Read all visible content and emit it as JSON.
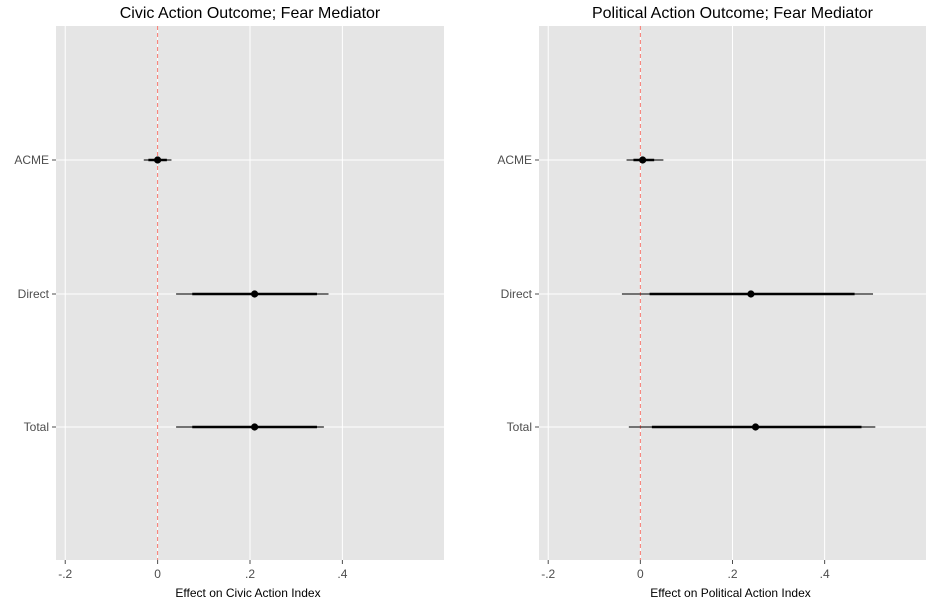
{
  "chart_data": [
    {
      "type": "forest",
      "title": "Civic Action Outcome; Fear Mediator",
      "xlabel": "Effect on Civic Action Index",
      "ylabel": "",
      "xlim": [
        -0.22,
        0.62
      ],
      "x_ticks": [
        {
          "value": -0.2,
          "label": "-.2"
        },
        {
          "value": 0,
          "label": "0"
        },
        {
          "value": 0.2,
          "label": ".2"
        },
        {
          "value": 0.4,
          "label": ".4"
        }
      ],
      "reference_line": 0,
      "grid": true,
      "rows": [
        {
          "label": "ACME",
          "estimate": 0.0,
          "ci_inner": [
            -0.02,
            0.02
          ],
          "ci_outer": [
            -0.03,
            0.03
          ]
        },
        {
          "label": "Direct",
          "estimate": 0.21,
          "ci_inner": [
            0.075,
            0.345
          ],
          "ci_outer": [
            0.04,
            0.37
          ]
        },
        {
          "label": "Total",
          "estimate": 0.21,
          "ci_inner": [
            0.075,
            0.345
          ],
          "ci_outer": [
            0.04,
            0.36
          ]
        }
      ]
    },
    {
      "type": "forest",
      "title": "Political Action Outcome; Fear Mediator",
      "xlabel": "Effect on Political Action Index",
      "ylabel": "",
      "xlim": [
        -0.22,
        0.62
      ],
      "x_ticks": [
        {
          "value": -0.2,
          "label": "-.2"
        },
        {
          "value": 0,
          "label": "0"
        },
        {
          "value": 0.2,
          "label": ".2"
        },
        {
          "value": 0.4,
          "label": ".4"
        }
      ],
      "reference_line": 0,
      "grid": true,
      "rows": [
        {
          "label": "ACME",
          "estimate": 0.005,
          "ci_inner": [
            -0.015,
            0.03
          ],
          "ci_outer": [
            -0.03,
            0.05
          ]
        },
        {
          "label": "Direct",
          "estimate": 0.24,
          "ci_inner": [
            0.02,
            0.465
          ],
          "ci_outer": [
            -0.04,
            0.505
          ]
        },
        {
          "label": "Total",
          "estimate": 0.25,
          "ci_inner": [
            0.025,
            0.48
          ],
          "ci_outer": [
            -0.025,
            0.51
          ]
        }
      ]
    }
  ],
  "colors": {
    "panel_bg": "#e5e5e5",
    "grid": "#ffffff",
    "reference_line": "#f8766d",
    "marks": "#000000"
  }
}
